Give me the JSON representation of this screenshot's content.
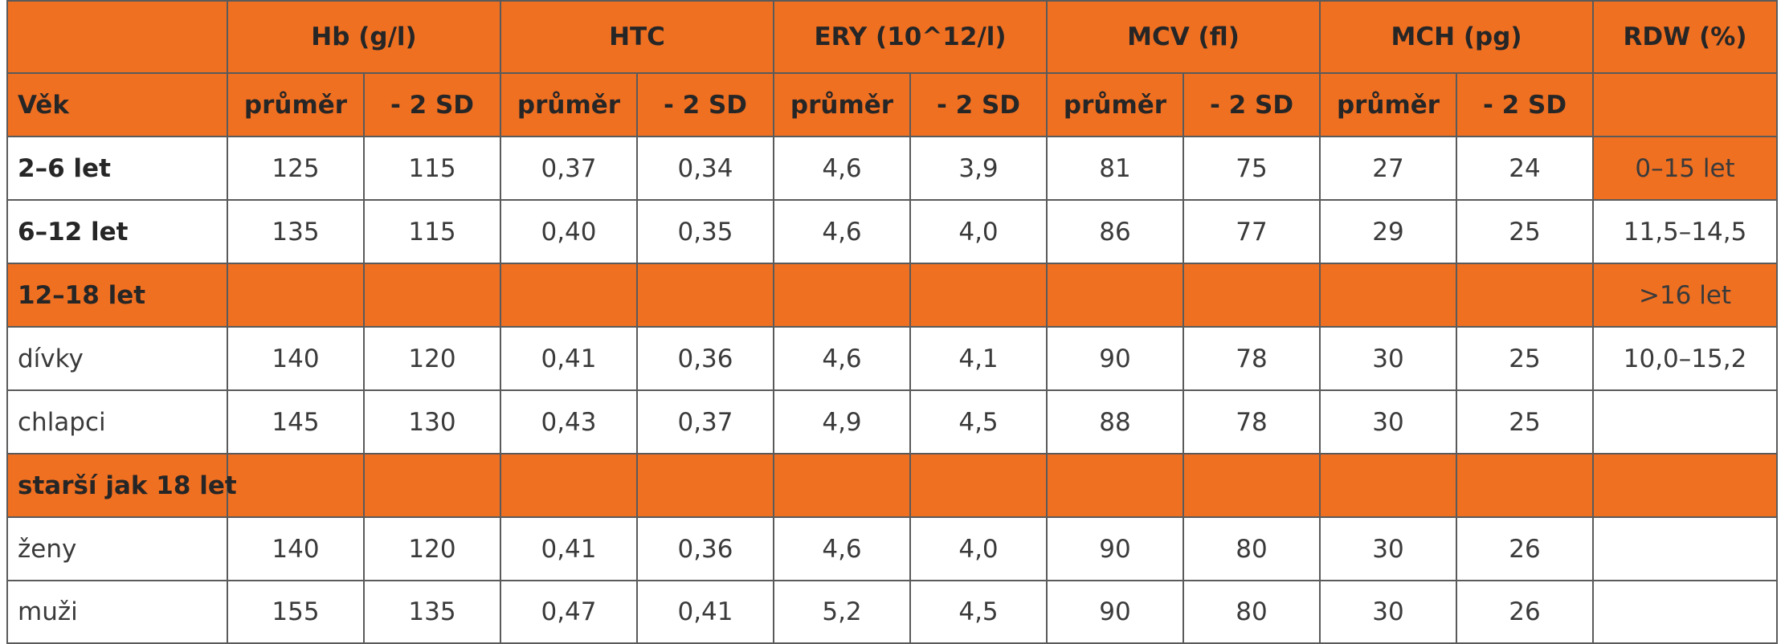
{
  "header": {
    "groups": [
      "Hb (g/l)",
      "HTC",
      "ERY (10^12/l)",
      "MCV (fl)",
      "MCH (pg)",
      "RDW (%)"
    ],
    "age_label": "Věk",
    "sub": [
      "průměr",
      "- 2 SD"
    ]
  },
  "rows": [
    {
      "label": "2–6 let",
      "values": [
        "125",
        "115",
        "0,37",
        "0,34",
        "4,6",
        "3,9",
        "81",
        "75",
        "27",
        "24"
      ],
      "rdw": "0–15 let"
    },
    {
      "label": "6–12 let",
      "values": [
        "135",
        "115",
        "0,40",
        "0,35",
        "4,6",
        "4,0",
        "86",
        "77",
        "29",
        "25"
      ],
      "rdw": "11,5–14,5"
    },
    {
      "label": "12–18 let",
      "rdw": ">16 let"
    },
    {
      "label": "dívky",
      "values": [
        "140",
        "120",
        "0,41",
        "0,36",
        "4,6",
        "4,1",
        "90",
        "78",
        "30",
        "25"
      ],
      "rdw": "10,0–15,2"
    },
    {
      "label": "chlapci",
      "values": [
        "145",
        "130",
        "0,43",
        "0,37",
        "4,9",
        "4,5",
        "88",
        "78",
        "30",
        "25"
      ],
      "rdw": ""
    },
    {
      "label": "starší jak 18 let",
      "rdw": ""
    },
    {
      "label": "ženy",
      "values": [
        "140",
        "120",
        "0,41",
        "0,36",
        "4,6",
        "4,0",
        "90",
        "80",
        "30",
        "26"
      ],
      "rdw": ""
    },
    {
      "label": "muži",
      "values": [
        "155",
        "135",
        "0,47",
        "0,41",
        "5,2",
        "4,5",
        "90",
        "80",
        "30",
        "26"
      ],
      "rdw": ""
    }
  ],
  "colors": {
    "accent": "#f07022",
    "border": "#5a5a5a",
    "text": "#3a3a3a"
  }
}
